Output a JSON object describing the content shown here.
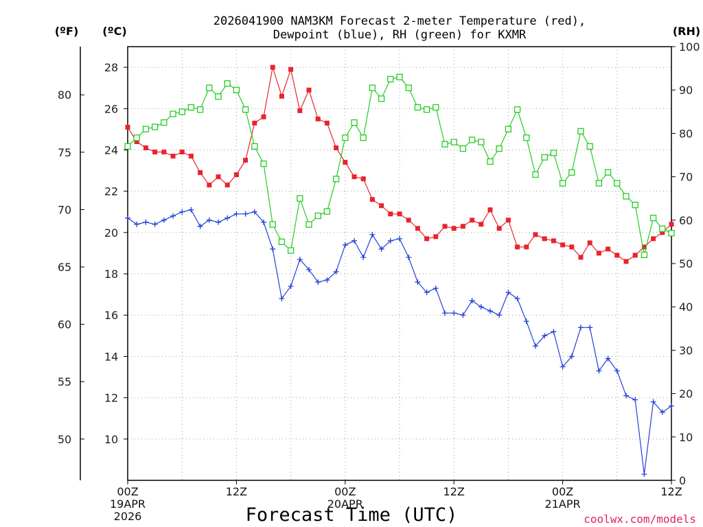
{
  "chart_data": {
    "type": "line",
    "title_line1": "2026041900 NAM3KM Forecast 2-meter Temperature (red),",
    "title_line2": "Dewpoint (blue), RH (green) for KXMR",
    "xlabel": "Forecast Time (UTC)",
    "credit": "coolwx.com/models",
    "units": {
      "fahrenheit": "(ºF)",
      "celsius": "(ºC)",
      "rh": "(RH)"
    },
    "x_range_hours": [
      0,
      60
    ],
    "x_ticks": [
      {
        "hour": 0,
        "label": "00Z",
        "sub1": "19APR",
        "sub2": "2026"
      },
      {
        "hour": 12,
        "label": "12Z",
        "sub1": "",
        "sub2": ""
      },
      {
        "hour": 24,
        "label": "00Z",
        "sub1": "20APR",
        "sub2": ""
      },
      {
        "hour": 36,
        "label": "12Z",
        "sub1": "",
        "sub2": ""
      },
      {
        "hour": 48,
        "label": "00Z",
        "sub1": "21APR",
        "sub2": ""
      },
      {
        "hour": 60,
        "label": "12Z",
        "sub1": "",
        "sub2": ""
      }
    ],
    "celsius_axis": {
      "min": 8,
      "max": 29,
      "ticks": [
        "10",
        "12",
        "14",
        "16",
        "18",
        "20",
        "22",
        "24",
        "26",
        "28"
      ]
    },
    "fahrenheit_axis": {
      "ticks": [
        "50",
        "55",
        "60",
        "65",
        "70",
        "75",
        "80"
      ]
    },
    "rh_axis": {
      "min": 0,
      "max": 100,
      "ticks": [
        "0",
        "10",
        "20",
        "30",
        "40",
        "50",
        "60",
        "70",
        "80",
        "90",
        "100"
      ]
    },
    "series": [
      {
        "name": "Temperature (°C)",
        "axis": "celsius",
        "color": "#e8242c",
        "marker": "filled-square",
        "values": [
          25.1,
          24.4,
          24.1,
          23.9,
          23.9,
          23.7,
          23.9,
          23.7,
          22.9,
          22.3,
          22.7,
          22.3,
          22.8,
          23.5,
          25.3,
          25.6,
          28.0,
          26.6,
          27.9,
          25.9,
          26.9,
          25.5,
          25.3,
          24.1,
          23.4,
          22.7,
          22.6,
          21.6,
          21.3,
          20.9,
          20.9,
          20.6,
          20.2,
          19.7,
          19.8,
          20.3,
          20.2,
          20.3,
          20.6,
          20.4,
          21.1,
          20.2,
          20.6,
          19.3,
          19.3,
          19.9,
          19.7,
          19.6,
          19.4,
          19.3,
          18.8,
          19.5,
          19.0,
          19.2,
          18.9,
          18.6,
          18.9,
          19.3,
          19.7,
          20.0,
          20.4
        ]
      },
      {
        "name": "Dewpoint (°C)",
        "axis": "celsius",
        "color": "#1f3fd8",
        "marker": "plus",
        "values": [
          20.7,
          20.4,
          20.5,
          20.4,
          20.6,
          20.8,
          21.0,
          21.1,
          20.3,
          20.6,
          20.5,
          20.7,
          20.9,
          20.9,
          21.0,
          20.5,
          19.2,
          16.8,
          17.4,
          18.7,
          18.2,
          17.6,
          17.7,
          18.1,
          19.4,
          19.6,
          18.8,
          19.9,
          19.2,
          19.6,
          19.7,
          18.8,
          17.6,
          17.1,
          17.3,
          16.1,
          16.1,
          16.0,
          16.7,
          16.4,
          16.2,
          16.0,
          17.1,
          16.8,
          15.7,
          14.5,
          15.0,
          15.2,
          13.5,
          14.0,
          15.4,
          15.4,
          13.3,
          13.9,
          13.3,
          12.1,
          11.9,
          8.3,
          11.8,
          11.3,
          11.6
        ]
      },
      {
        "name": "Relative Humidity (%)",
        "axis": "rh",
        "color": "#22cc22",
        "marker": "open-square",
        "values": [
          77,
          79,
          81,
          81.5,
          82.5,
          84.5,
          85,
          86,
          85.5,
          90.5,
          88.5,
          91.5,
          90,
          85.5,
          77,
          73,
          59,
          55,
          53,
          65,
          59,
          61,
          62,
          69.5,
          79,
          82.5,
          79,
          90.5,
          88,
          92.5,
          93,
          90.5,
          86,
          85.5,
          86,
          77.5,
          78,
          76.5,
          78.5,
          78,
          73.5,
          76.5,
          81,
          85.5,
          79,
          70.5,
          74.5,
          75.5,
          68.5,
          71,
          80.5,
          77,
          68.5,
          71,
          68.5,
          65.5,
          63.5,
          52,
          60.5,
          58,
          57
        ]
      }
    ]
  }
}
